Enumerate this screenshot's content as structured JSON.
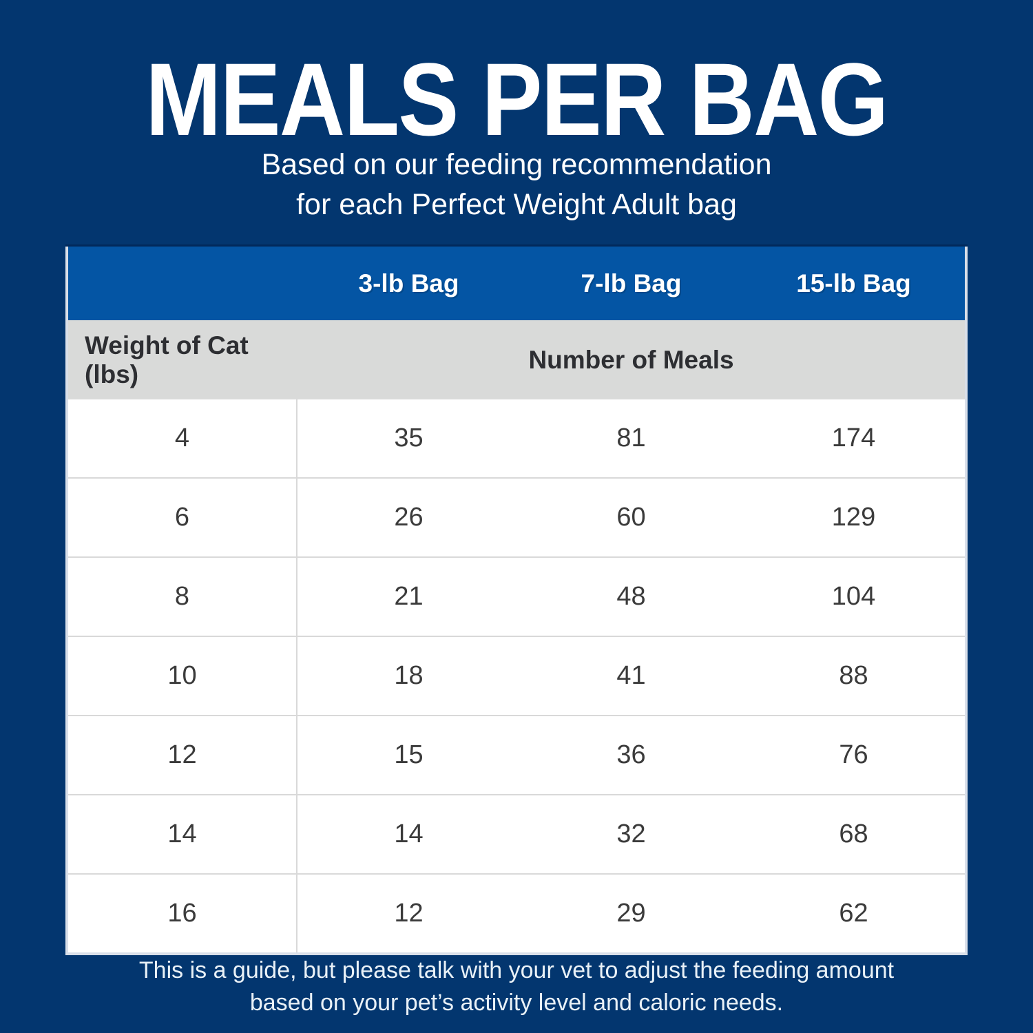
{
  "header": {
    "title": "MEALS PER BAG",
    "subtitle_line1": "Based on our feeding recommendation",
    "subtitle_line2": "for each Perfect Weight Adult bag"
  },
  "table": {
    "bag_headers": [
      "3-lb Bag",
      "7-lb Bag",
      "15-lb Bag"
    ],
    "weight_header": "Weight of Cat (lbs)",
    "meals_header": "Number of Meals",
    "rows": [
      {
        "weight": "4",
        "meals": [
          "35",
          "81",
          "174"
        ]
      },
      {
        "weight": "6",
        "meals": [
          "26",
          "60",
          "129"
        ]
      },
      {
        "weight": "8",
        "meals": [
          "21",
          "48",
          "104"
        ]
      },
      {
        "weight": "10",
        "meals": [
          "18",
          "41",
          "88"
        ]
      },
      {
        "weight": "12",
        "meals": [
          "15",
          "36",
          "76"
        ]
      },
      {
        "weight": "14",
        "meals": [
          "14",
          "32",
          "68"
        ]
      },
      {
        "weight": "16",
        "meals": [
          "12",
          "29",
          "62"
        ]
      }
    ]
  },
  "footer": {
    "line1": "This is a guide, but please talk with your vet to adjust the feeding amount",
    "line2": "based on your pet’s activity level and caloric needs."
  },
  "colors": {
    "background_navy": "#03366F",
    "header_blue": "#0455A4",
    "subheader_gray": "#D9DAD9",
    "row_divider": "#D9D9D9",
    "cell_text": "#3B3B3B",
    "title_text": "#FFFFFF",
    "footer_text": "#E9F1F7"
  },
  "chart_data": {
    "type": "table",
    "title": "MEALS PER BAG",
    "subtitle": "Based on our feeding recommendation for each Perfect Weight Adult bag",
    "columns": [
      "Weight of Cat (lbs)",
      "3-lb Bag",
      "7-lb Bag",
      "15-lb Bag"
    ],
    "group_header": "Number of Meals",
    "rows": [
      [
        4,
        35,
        81,
        174
      ],
      [
        6,
        26,
        60,
        129
      ],
      [
        8,
        21,
        48,
        104
      ],
      [
        10,
        18,
        41,
        88
      ],
      [
        12,
        15,
        36,
        76
      ],
      [
        14,
        14,
        32,
        68
      ],
      [
        16,
        12,
        29,
        62
      ]
    ],
    "note": "This is a guide, but please talk with your vet to adjust the feeding amount based on your pet’s activity level and caloric needs."
  }
}
